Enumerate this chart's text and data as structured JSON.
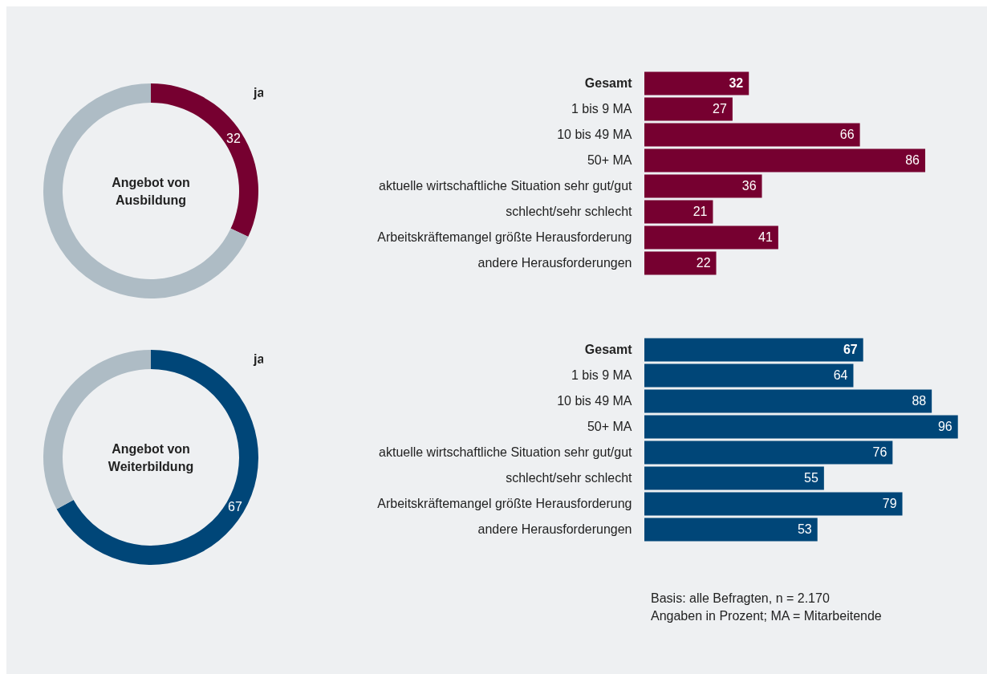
{
  "chart_data": [
    {
      "type": "donut",
      "title": "Angebot von Ausbildung",
      "categories": [
        "ja",
        null
      ],
      "values": [
        32,
        68
      ],
      "colors": [
        "#760030",
        "#aebcc5"
      ],
      "value_labels": [
        "32",
        null
      ]
    },
    {
      "type": "bar",
      "orientation": "horizontal",
      "categories": [
        "Gesamt",
        "1 bis 9 MA",
        "10 bis 49 MA",
        "50+ MA",
        "aktuelle wirtschaftliche Situation sehr gut/gut",
        "schlecht/sehr schlecht",
        "Arbeitskräftemangel größte Herausforderung",
        "andere Herausforderungen"
      ],
      "values": [
        32,
        27,
        66,
        86,
        36,
        21,
        41,
        22
      ],
      "color": "#760030",
      "data_labels": true
    },
    {
      "type": "donut",
      "title": "Angebot von Weiterbildung",
      "categories": [
        "ja",
        null
      ],
      "values": [
        67,
        33
      ],
      "colors": [
        "#004678",
        "#aebcc5"
      ],
      "value_labels": [
        "67",
        null
      ]
    },
    {
      "type": "bar",
      "orientation": "horizontal",
      "categories": [
        "Gesamt",
        "1 bis 9 MA",
        "10 bis 49 MA",
        "50+ MA",
        "aktuelle wirtschaftliche Situation sehr gut/gut",
        "schlecht/sehr schlecht",
        "Arbeitskräftemangel größte Herausforderung",
        "andere Herausforderungen"
      ],
      "values": [
        67,
        64,
        88,
        96,
        76,
        55,
        79,
        53
      ],
      "color": "#004678",
      "data_labels": true,
      "annotations": [
        "Basis: alle Befragten, n = 2.170",
        "Angaben in Prozent; MA = Mitarbeitende"
      ]
    }
  ]
}
